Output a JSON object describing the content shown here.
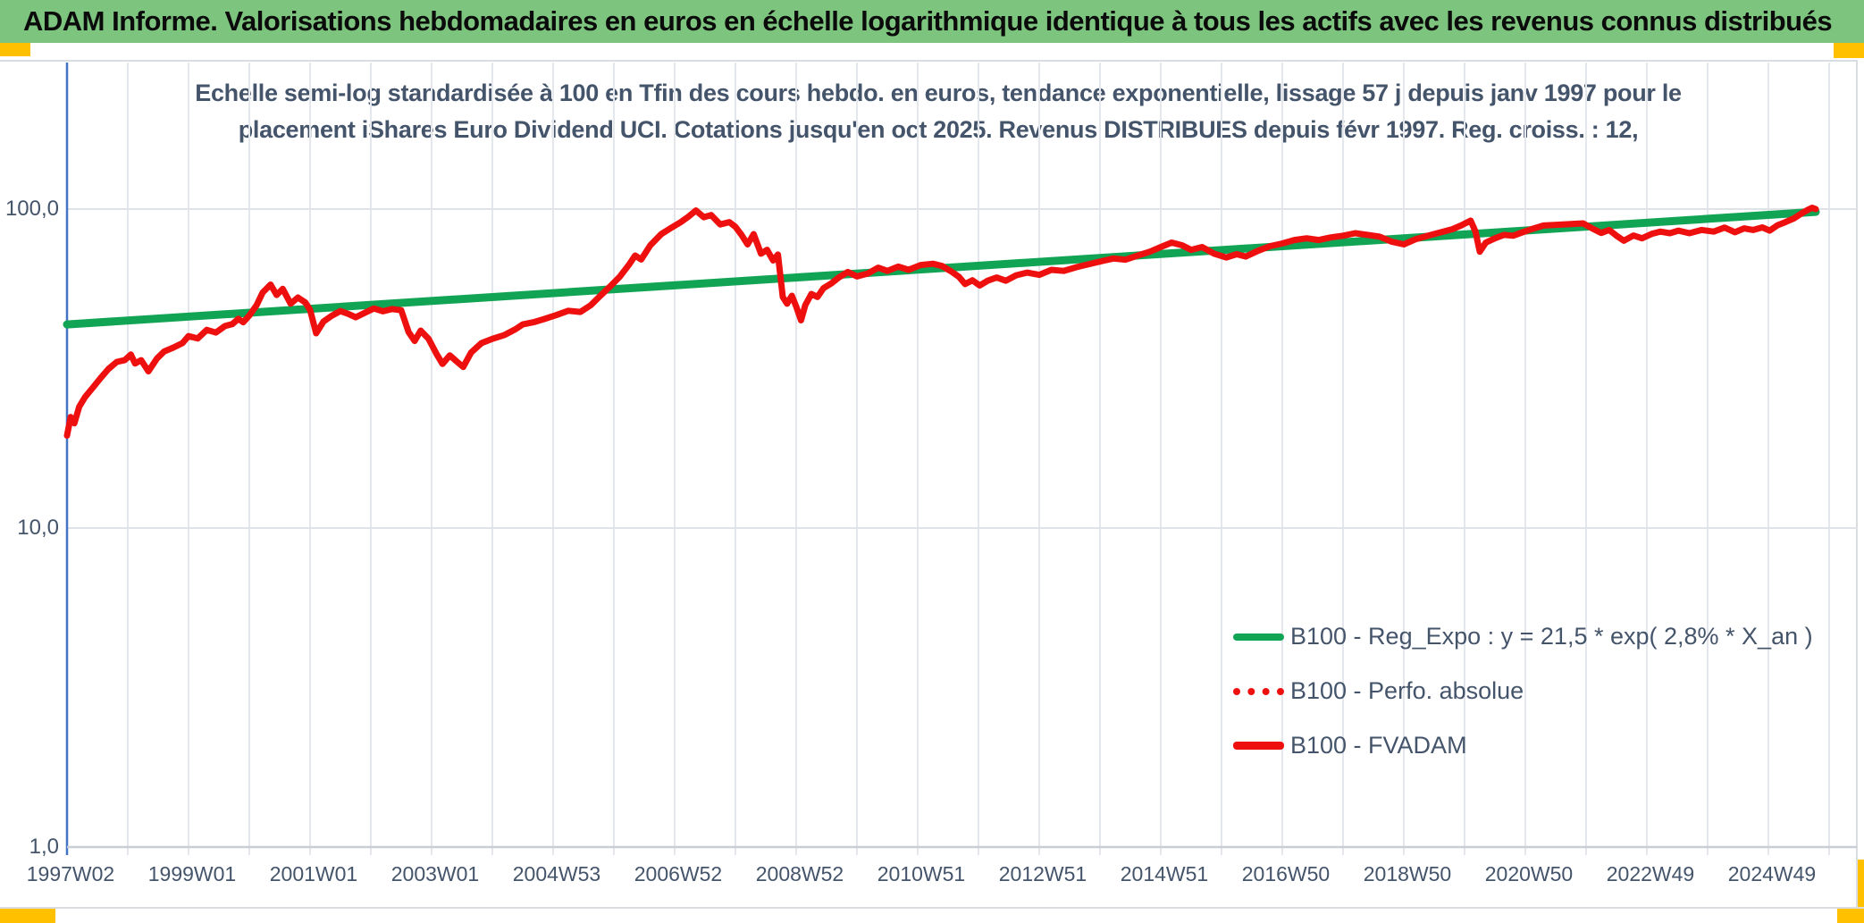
{
  "header": {
    "title": "ADAM Informe. Valorisations hebdomadaires en euros en échelle logarithmique identique à tous les actifs avec les revenus connus distribués"
  },
  "colors": {
    "header_bg": "#7dc57e",
    "accent_yellow": "#ffc000",
    "series_red": "#ee100e",
    "trend_green": "#12a455",
    "text_blue_gray": "#44546a",
    "axis_blue": "#4472c4",
    "gridline": "#e4e7eb"
  },
  "chart_data": {
    "type": "line",
    "title_line1": "Echelle semi-log standardisée à 100 en Tfin des cours hebdo. en euros, tendance exponentielle, lissage 57 j depuis janv 1997 pour le",
    "title_line2": "placement iShares Euro Dividend UCI. Cotations jusqu'en oct 2025. Revenus DISTRIBUES depuis févr 1997. Reg. croiss. : 12,",
    "y_axis": {
      "scale": "log",
      "tick_labels": [
        "100,0",
        "10,0",
        "1,0"
      ],
      "tick_values": [
        100,
        10,
        1
      ],
      "range": [
        1,
        200
      ],
      "grid": true
    },
    "x_axis": {
      "tick_labels": [
        "1997W02",
        "1999W01",
        "2001W01",
        "2003W01",
        "2004W53",
        "2006W52",
        "2008W52",
        "2010W51",
        "2012W51",
        "2014W51",
        "2016W50",
        "2018W50",
        "2020W50",
        "2022W49",
        "2024W49"
      ],
      "start_year": 1997.0,
      "end_year": 2025.8,
      "label_interval_years": 2,
      "grid": true
    },
    "legend": {
      "position": "inside-right-lower",
      "entries": [
        {
          "label": "B100 - Reg_Expo : y = 21,5 * exp( 2,8% *  X_an )",
          "color": "#12a455",
          "style": "solid"
        },
        {
          "label": "B100 - Perfo. absolue",
          "color": "#ee100e",
          "style": "dotted"
        },
        {
          "label": "B100 - FVADAM",
          "color": "#ee100e",
          "style": "solid"
        }
      ]
    },
    "series": [
      {
        "name": "B100 - Reg_Expo",
        "color": "#12a455",
        "style": "solid",
        "width": 9,
        "points": [
          [
            1997.0,
            43.5
          ],
          [
            2025.78,
            98.0
          ]
        ]
      },
      {
        "name": "B100 - FVADAM",
        "color": "#ee100e",
        "style": "solid",
        "width": 7,
        "points": [
          [
            1997.0,
            19.5
          ],
          [
            1997.06,
            22.3
          ],
          [
            1997.12,
            21.3
          ],
          [
            1997.2,
            24.0
          ],
          [
            1997.3,
            25.8
          ],
          [
            1997.42,
            27.5
          ],
          [
            1997.55,
            29.5
          ],
          [
            1997.68,
            31.5
          ],
          [
            1997.82,
            33.2
          ],
          [
            1997.95,
            33.6
          ],
          [
            1998.05,
            35.0
          ],
          [
            1998.12,
            32.8
          ],
          [
            1998.22,
            33.6
          ],
          [
            1998.34,
            31.0
          ],
          [
            1998.48,
            34.0
          ],
          [
            1998.6,
            35.8
          ],
          [
            1998.75,
            36.8
          ],
          [
            1998.9,
            38.0
          ],
          [
            1999.0,
            40.0
          ],
          [
            1999.15,
            39.3
          ],
          [
            1999.3,
            41.8
          ],
          [
            1999.45,
            41.0
          ],
          [
            1999.6,
            43.0
          ],
          [
            1999.72,
            43.6
          ],
          [
            1999.82,
            45.3
          ],
          [
            1999.9,
            44.2
          ],
          [
            2000.0,
            46.4
          ],
          [
            2000.12,
            50.0
          ],
          [
            2000.22,
            54.8
          ],
          [
            2000.35,
            58.0
          ],
          [
            2000.45,
            53.8
          ],
          [
            2000.55,
            56.2
          ],
          [
            2000.68,
            50.5
          ],
          [
            2000.8,
            52.8
          ],
          [
            2000.92,
            51.0
          ],
          [
            2001.0,
            48.3
          ],
          [
            2001.1,
            40.8
          ],
          [
            2001.22,
            44.4
          ],
          [
            2001.35,
            46.2
          ],
          [
            2001.5,
            47.9
          ],
          [
            2001.62,
            47.0
          ],
          [
            2001.75,
            45.8
          ],
          [
            2001.9,
            47.3
          ],
          [
            2002.05,
            48.8
          ],
          [
            2002.2,
            47.8
          ],
          [
            2002.35,
            48.6
          ],
          [
            2002.5,
            48.2
          ],
          [
            2002.62,
            41.2
          ],
          [
            2002.72,
            38.6
          ],
          [
            2002.82,
            41.6
          ],
          [
            2002.95,
            39.2
          ],
          [
            2003.08,
            35.2
          ],
          [
            2003.18,
            32.7
          ],
          [
            2003.3,
            34.8
          ],
          [
            2003.42,
            33.2
          ],
          [
            2003.52,
            32.0
          ],
          [
            2003.65,
            35.5
          ],
          [
            2003.82,
            38.0
          ],
          [
            2004.0,
            39.2
          ],
          [
            2004.2,
            40.3
          ],
          [
            2004.38,
            42.0
          ],
          [
            2004.5,
            43.5
          ],
          [
            2004.68,
            44.2
          ],
          [
            2004.85,
            45.2
          ],
          [
            2005.05,
            46.5
          ],
          [
            2005.25,
            48.0
          ],
          [
            2005.45,
            47.6
          ],
          [
            2005.62,
            50.0
          ],
          [
            2005.8,
            54.0
          ],
          [
            2005.95,
            57.5
          ],
          [
            2006.1,
            61.5
          ],
          [
            2006.25,
            67.0
          ],
          [
            2006.35,
            71.5
          ],
          [
            2006.45,
            69.5
          ],
          [
            2006.6,
            77.0
          ],
          [
            2006.78,
            83.5
          ],
          [
            2006.95,
            87.5
          ],
          [
            2007.1,
            91.0
          ],
          [
            2007.22,
            94.5
          ],
          [
            2007.35,
            99.0
          ],
          [
            2007.48,
            94.3
          ],
          [
            2007.6,
            95.8
          ],
          [
            2007.75,
            89.5
          ],
          [
            2007.9,
            91.0
          ],
          [
            2008.0,
            88.0
          ],
          [
            2008.1,
            83.0
          ],
          [
            2008.2,
            77.5
          ],
          [
            2008.3,
            83.5
          ],
          [
            2008.42,
            72.5
          ],
          [
            2008.52,
            74.5
          ],
          [
            2008.62,
            69.0
          ],
          [
            2008.7,
            72.0
          ],
          [
            2008.78,
            53.0
          ],
          [
            2008.85,
            50.5
          ],
          [
            2008.93,
            53.5
          ],
          [
            2009.0,
            49.5
          ],
          [
            2009.08,
            44.8
          ],
          [
            2009.15,
            50.0
          ],
          [
            2009.25,
            54.2
          ],
          [
            2009.35,
            53.0
          ],
          [
            2009.45,
            56.5
          ],
          [
            2009.58,
            58.5
          ],
          [
            2009.7,
            61.0
          ],
          [
            2009.85,
            63.5
          ],
          [
            2010.0,
            61.5
          ],
          [
            2010.18,
            62.8
          ],
          [
            2010.35,
            65.5
          ],
          [
            2010.5,
            64.0
          ],
          [
            2010.68,
            66.0
          ],
          [
            2010.85,
            64.5
          ],
          [
            2011.05,
            66.8
          ],
          [
            2011.25,
            67.4
          ],
          [
            2011.4,
            66.3
          ],
          [
            2011.55,
            63.8
          ],
          [
            2011.68,
            61.3
          ],
          [
            2011.78,
            58.2
          ],
          [
            2011.9,
            59.8
          ],
          [
            2012.02,
            57.6
          ],
          [
            2012.15,
            59.6
          ],
          [
            2012.3,
            61.0
          ],
          [
            2012.45,
            59.6
          ],
          [
            2012.62,
            62.0
          ],
          [
            2012.8,
            63.2
          ],
          [
            2013.0,
            62.2
          ],
          [
            2013.2,
            64.5
          ],
          [
            2013.4,
            64.0
          ],
          [
            2013.62,
            65.8
          ],
          [
            2013.82,
            67.2
          ],
          [
            2014.02,
            68.6
          ],
          [
            2014.22,
            70.0
          ],
          [
            2014.42,
            69.4
          ],
          [
            2014.62,
            71.5
          ],
          [
            2014.82,
            73.5
          ],
          [
            2015.0,
            76.0
          ],
          [
            2015.18,
            78.5
          ],
          [
            2015.35,
            77.0
          ],
          [
            2015.5,
            74.5
          ],
          [
            2015.68,
            76.0
          ],
          [
            2015.88,
            72.5
          ],
          [
            2016.08,
            70.5
          ],
          [
            2016.25,
            72.2
          ],
          [
            2016.4,
            71.0
          ],
          [
            2016.6,
            74.0
          ],
          [
            2016.8,
            76.5
          ],
          [
            2017.0,
            78.0
          ],
          [
            2017.2,
            80.0
          ],
          [
            2017.4,
            81.0
          ],
          [
            2017.6,
            80.0
          ],
          [
            2017.8,
            81.5
          ],
          [
            2018.0,
            82.5
          ],
          [
            2018.2,
            84.0
          ],
          [
            2018.4,
            83.0
          ],
          [
            2018.6,
            82.0
          ],
          [
            2018.8,
            79.0
          ],
          [
            2019.0,
            77.5
          ],
          [
            2019.2,
            80.5
          ],
          [
            2019.4,
            82.5
          ],
          [
            2019.6,
            84.5
          ],
          [
            2019.8,
            86.5
          ],
          [
            2019.95,
            89.0
          ],
          [
            2020.1,
            92.0
          ],
          [
            2020.18,
            85.0
          ],
          [
            2020.25,
            73.5
          ],
          [
            2020.35,
            78.5
          ],
          [
            2020.5,
            81.0
          ],
          [
            2020.65,
            83.0
          ],
          [
            2020.8,
            82.5
          ],
          [
            2020.95,
            84.5
          ],
          [
            2021.1,
            86.5
          ],
          [
            2021.3,
            88.8
          ],
          [
            2021.55,
            89.3
          ],
          [
            2021.75,
            89.8
          ],
          [
            2021.95,
            90.2
          ],
          [
            2022.1,
            87.0
          ],
          [
            2022.25,
            84.2
          ],
          [
            2022.38,
            86.0
          ],
          [
            2022.5,
            82.5
          ],
          [
            2022.62,
            79.6
          ],
          [
            2022.78,
            82.6
          ],
          [
            2022.92,
            81.0
          ],
          [
            2023.08,
            83.6
          ],
          [
            2023.22,
            85.0
          ],
          [
            2023.38,
            84.0
          ],
          [
            2023.52,
            85.6
          ],
          [
            2023.7,
            84.0
          ],
          [
            2023.9,
            86.0
          ],
          [
            2024.1,
            85.0
          ],
          [
            2024.28,
            87.5
          ],
          [
            2024.45,
            84.6
          ],
          [
            2024.6,
            87.0
          ],
          [
            2024.75,
            86.0
          ],
          [
            2024.9,
            87.6
          ],
          [
            2025.02,
            85.6
          ],
          [
            2025.15,
            89.0
          ],
          [
            2025.28,
            91.0
          ],
          [
            2025.42,
            93.5
          ],
          [
            2025.55,
            97.0
          ],
          [
            2025.65,
            99.5
          ],
          [
            2025.72,
            101.0
          ],
          [
            2025.78,
            100.0
          ]
        ]
      }
    ]
  }
}
